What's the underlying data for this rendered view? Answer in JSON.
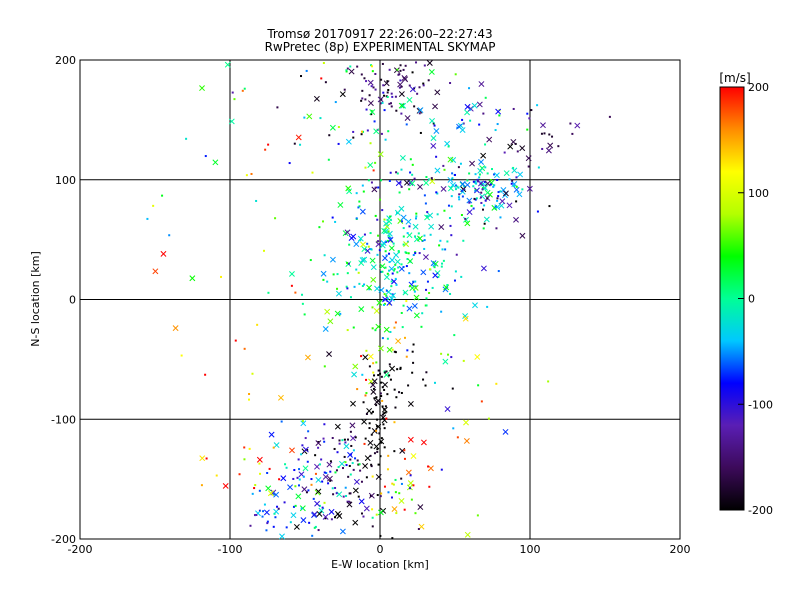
{
  "chart_data": {
    "type": "scatter",
    "title": "Tromsø 20170917 22:26:00–22:27:43",
    "subtitle": "RwPretec (8p) EXPERIMENTAL SKYMAP",
    "xlabel": "E-W location [km]",
    "ylabel": "N-S location [km]",
    "xlim": [
      -200,
      200
    ],
    "ylim": [
      -200,
      200
    ],
    "x_ticks": [
      -200,
      -100,
      0,
      100,
      200
    ],
    "y_ticks": [
      -200,
      -100,
      0,
      100,
      200
    ],
    "grid": true,
    "colorbar": {
      "label": "[m/s]",
      "range": [
        -200,
        200
      ],
      "ticks": [
        200,
        100,
        0,
        -100,
        -200
      ],
      "colors": [
        "#000000",
        "#3c0a5a",
        "#5a1eb4",
        "#0000ff",
        "#00c8ff",
        "#00ff96",
        "#00ff00",
        "#b4ff00",
        "#ffff00",
        "#ff8c00",
        "#ff0000"
      ]
    },
    "markers": [
      "dot",
      "cross"
    ],
    "clusters": [
      {
        "cx": 15,
        "cy": 180,
        "sx": 12,
        "sy": 12,
        "n": 55,
        "v": -165,
        "vs": 30
      },
      {
        "cx": -15,
        "cy": 160,
        "sx": 22,
        "sy": 20,
        "n": 35,
        "v": -150,
        "vs": 50
      },
      {
        "cx": 55,
        "cy": 150,
        "sx": 22,
        "sy": 10,
        "n": 40,
        "v": -60,
        "vs": 60
      },
      {
        "cx": 105,
        "cy": 135,
        "sx": 15,
        "sy": 12,
        "n": 25,
        "v": -150,
        "vs": 30
      },
      {
        "cx": 70,
        "cy": 95,
        "sx": 12,
        "sy": 10,
        "n": 70,
        "v": -20,
        "vs": 30
      },
      {
        "cx": 70,
        "cy": 85,
        "sx": 14,
        "sy": 12,
        "n": 40,
        "v": -120,
        "vs": 50
      },
      {
        "cx": 30,
        "cy": 95,
        "sx": 28,
        "sy": 15,
        "n": 60,
        "v": -60,
        "vs": 60
      },
      {
        "cx": -5,
        "cy": 130,
        "sx": 25,
        "sy": 20,
        "n": 30,
        "v": -10,
        "vs": 90
      },
      {
        "cx": 10,
        "cy": 30,
        "sx": 25,
        "sy": 22,
        "n": 190,
        "v": -20,
        "vs": 45
      },
      {
        "cx": 20,
        "cy": 60,
        "sx": 30,
        "sy": 20,
        "n": 50,
        "v": -30,
        "vs": 60
      },
      {
        "cx": 5,
        "cy": 0,
        "sx": 20,
        "sy": 15,
        "n": 30,
        "v": 30,
        "vs": 60
      },
      {
        "cx": 0,
        "cy": -40,
        "sx": 10,
        "sy": 18,
        "n": 25,
        "v": 80,
        "vs": 60
      },
      {
        "cx": 10,
        "cy": -70,
        "sx": 14,
        "sy": 14,
        "n": 30,
        "v": -200,
        "vs": 10
      },
      {
        "cx": -3,
        "cy": -100,
        "sx": 5,
        "sy": 25,
        "n": 60,
        "v": -200,
        "vs": 10
      },
      {
        "cx": -15,
        "cy": -130,
        "sx": 15,
        "sy": 15,
        "n": 30,
        "v": -190,
        "vs": 20
      },
      {
        "cx": 20,
        "cy": -130,
        "sx": 20,
        "sy": 20,
        "n": 25,
        "v": 160,
        "vs": 50
      },
      {
        "cx": -40,
        "cy": -135,
        "sx": 15,
        "sy": 15,
        "n": 45,
        "v": -110,
        "vs": 60
      },
      {
        "cx": -50,
        "cy": -170,
        "sx": 15,
        "sy": 20,
        "n": 60,
        "v": -60,
        "vs": 60
      },
      {
        "cx": -75,
        "cy": -180,
        "sx": 10,
        "sy": 10,
        "n": 20,
        "v": -90,
        "vs": 40
      },
      {
        "cx": -20,
        "cy": -175,
        "sx": 15,
        "sy": 12,
        "n": 30,
        "v": -150,
        "vs": 60
      },
      {
        "cx": -85,
        "cy": -150,
        "sx": 20,
        "sy": 15,
        "n": 20,
        "v": 150,
        "vs": 50
      },
      {
        "cx": 15,
        "cy": -170,
        "sx": 20,
        "sy": 15,
        "n": 25,
        "v": 40,
        "vs": 130
      },
      {
        "cx": -60,
        "cy": -50,
        "sx": 50,
        "sy": 60,
        "n": 40,
        "v": 120,
        "vs": 90
      },
      {
        "cx": 60,
        "cy": -60,
        "sx": 30,
        "sy": 50,
        "n": 20,
        "v": 60,
        "vs": 100
      },
      {
        "cx": -80,
        "cy": 140,
        "sx": 60,
        "sy": 40,
        "n": 25,
        "v": 40,
        "vs": 110
      },
      {
        "cx": -20,
        "cy": 195,
        "sx": 25,
        "sy": 5,
        "n": 15,
        "v": 20,
        "vs": 120
      }
    ]
  }
}
